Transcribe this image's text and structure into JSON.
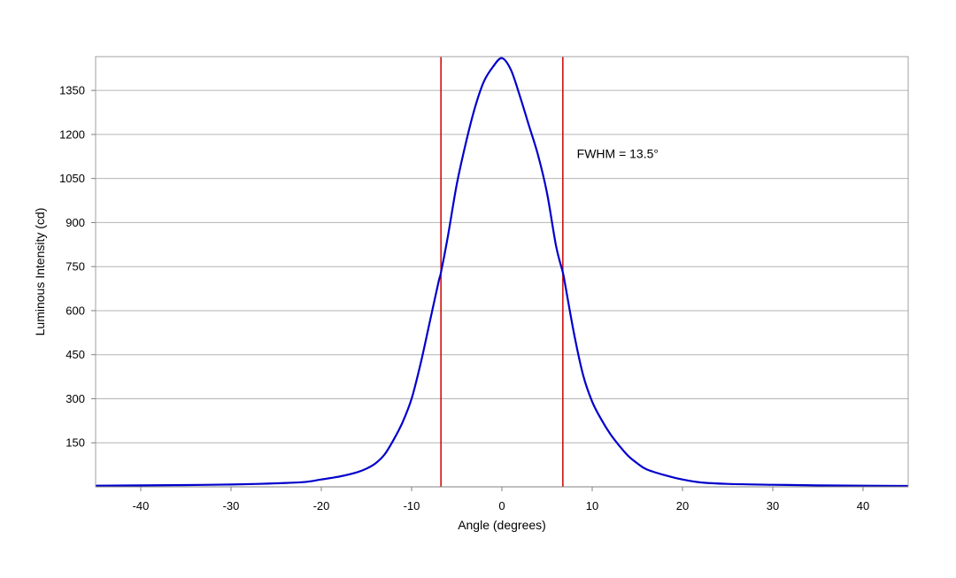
{
  "chart_data": {
    "type": "line",
    "title": "",
    "xlabel": "Angle (degrees)",
    "ylabel": "Luminous Intensity (cd)",
    "xlim": [
      -45,
      45
    ],
    "ylim": [
      0,
      1465
    ],
    "x_ticks": [
      -40,
      -30,
      -20,
      -10,
      0,
      10,
      20,
      30,
      40
    ],
    "y_ticks": [
      150,
      300,
      450,
      600,
      750,
      900,
      1050,
      1200,
      1350
    ],
    "grid": {
      "horizontal": true,
      "vertical": false
    },
    "series": [
      {
        "color": "#0000cc",
        "x": [
          -45,
          -40,
          -35,
          -30,
          -27,
          -25,
          -22,
          -20,
          -18,
          -16,
          -15,
          -14,
          -13,
          -12,
          -11,
          -10,
          -9,
          -8,
          -7,
          -6.75,
          -6,
          -5,
          -4,
          -3,
          -2,
          -1,
          0,
          1,
          2,
          3,
          4,
          5,
          6,
          6.75,
          7,
          8,
          9,
          10,
          11,
          12,
          13,
          14,
          15,
          16,
          18,
          20,
          22,
          25,
          30,
          35,
          40,
          45
        ],
        "y": [
          4,
          5,
          6,
          8,
          10,
          12,
          16,
          25,
          35,
          50,
          62,
          80,
          110,
          160,
          220,
          300,
          420,
          560,
          700,
          730,
          850,
          1030,
          1170,
          1290,
          1380,
          1430,
          1460,
          1420,
          1330,
          1230,
          1130,
          1000,
          820,
          730,
          690,
          520,
          380,
          290,
          230,
          180,
          140,
          105,
          80,
          60,
          40,
          25,
          15,
          10,
          7,
          5,
          4,
          3
        ]
      }
    ],
    "reference_lines": [
      {
        "x": -6.75,
        "color": "#cc0000"
      },
      {
        "x": 6.75,
        "color": "#cc0000"
      }
    ],
    "annotations": [
      {
        "text": "FWHM = 13.5°",
        "x": 8.3,
        "y": 1120
      }
    ]
  }
}
